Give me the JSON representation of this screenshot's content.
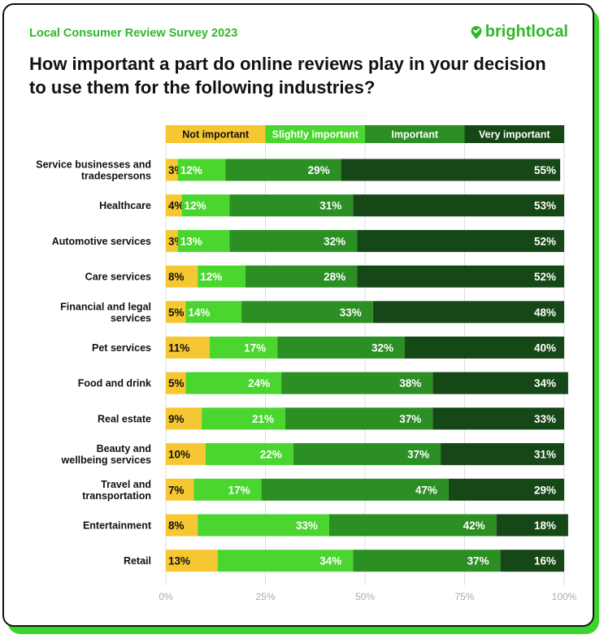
{
  "header": {
    "survey_label": "Local Consumer Review Survey 2023",
    "brand": "brightlocal",
    "title": "How important a part do online reviews play in your decision to use them for the following industries?"
  },
  "chart_data": {
    "type": "bar",
    "stacked": true,
    "orientation": "horizontal",
    "title": "How important a part do online reviews play in your decision to use them for the following industries?",
    "legend_position": "top",
    "categories": [
      "Service businesses and tradespersons",
      "Healthcare",
      "Automotive services",
      "Care services",
      "Financial and legal services",
      "Pet services",
      "Food and drink",
      "Real estate",
      "Beauty and wellbeing services",
      "Travel and transportation",
      "Entertainment",
      "Retail"
    ],
    "category_lines": [
      [
        "Service businesses and",
        "tradespersons"
      ],
      [
        "Healthcare"
      ],
      [
        "Automotive services"
      ],
      [
        "Care services"
      ],
      [
        "Financial and legal",
        "services"
      ],
      [
        "Pet services"
      ],
      [
        "Food and drink"
      ],
      [
        "Real estate"
      ],
      [
        "Beauty and",
        "wellbeing services"
      ],
      [
        "Travel and",
        "transportation"
      ],
      [
        "Entertainment"
      ],
      [
        "Retail"
      ]
    ],
    "series": [
      {
        "name": "Not important",
        "color": "#f5c732",
        "text_color": "#111111",
        "values": [
          3,
          4,
          3,
          8,
          5,
          11,
          5,
          9,
          10,
          7,
          8,
          13
        ]
      },
      {
        "name": "Slightly important",
        "color": "#4ad62e",
        "text_color": "#ffffff",
        "values": [
          12,
          12,
          13,
          12,
          14,
          17,
          24,
          21,
          22,
          17,
          33,
          34
        ]
      },
      {
        "name": "Important",
        "color": "#2b8f24",
        "text_color": "#ffffff",
        "values": [
          29,
          31,
          32,
          28,
          33,
          32,
          38,
          37,
          37,
          47,
          42,
          37
        ]
      },
      {
        "name": "Very important",
        "color": "#164716",
        "text_color": "#ffffff",
        "values": [
          55,
          53,
          52,
          52,
          48,
          40,
          34,
          33,
          31,
          29,
          18,
          16
        ]
      }
    ],
    "x_ticks": [
      "0%",
      "25%",
      "50%",
      "75%",
      "100%"
    ],
    "xlim": [
      0,
      100
    ],
    "grid": true
  }
}
